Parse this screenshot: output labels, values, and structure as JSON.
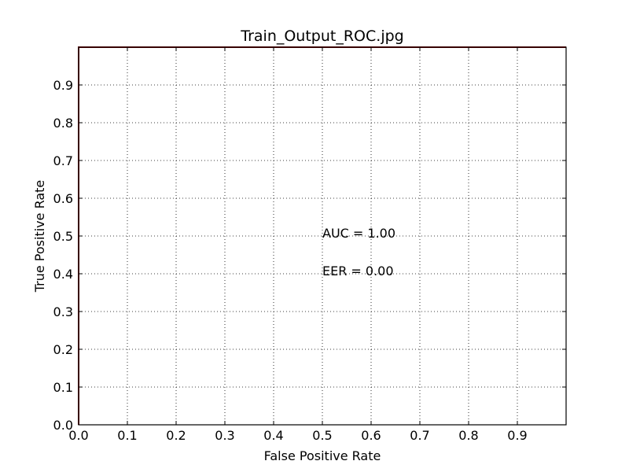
{
  "chart_data": {
    "type": "line",
    "title": "Train_Output_ROC.jpg",
    "xlabel": "False Positive Rate",
    "ylabel": "True Positive Rate",
    "xlim": [
      0.0,
      1.0
    ],
    "ylim": [
      0.0,
      1.0
    ],
    "x_ticks": [
      "0.0",
      "0.1",
      "0.2",
      "0.3",
      "0.4",
      "0.5",
      "0.6",
      "0.7",
      "0.8",
      "0.9"
    ],
    "y_ticks": [
      "0.0",
      "0.1",
      "0.2",
      "0.3",
      "0.4",
      "0.5",
      "0.6",
      "0.7",
      "0.8",
      "0.9"
    ],
    "grid": true,
    "series": [
      {
        "x": [
          0.0,
          0.0,
          1.0
        ],
        "y": [
          0.0,
          1.0,
          1.0
        ],
        "color": "#8b0000"
      }
    ],
    "annotations": [
      {
        "text": "AUC = 1.00",
        "x": 0.5,
        "y": 0.5
      },
      {
        "text": "EER = 0.00",
        "x": 0.5,
        "y": 0.4
      }
    ]
  }
}
